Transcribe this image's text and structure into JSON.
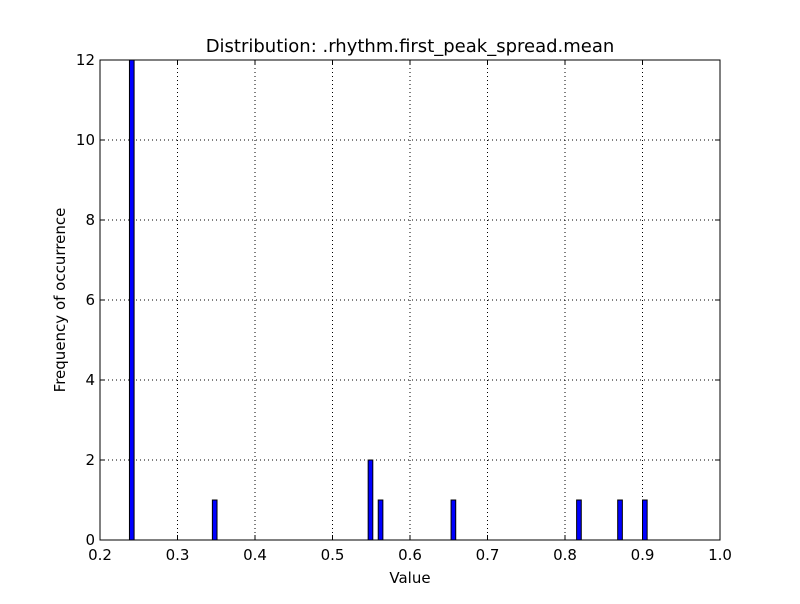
{
  "chart_data": {
    "type": "bar",
    "title": "Distribution: .rhythm.first_peak_spread.mean",
    "xlabel": "Value",
    "ylabel": "Frequency of occurrence",
    "xlim": [
      0.2,
      1.0
    ],
    "ylim": [
      0,
      12
    ],
    "xticks": [
      "0.2",
      "0.3",
      "0.4",
      "0.5",
      "0.6",
      "0.7",
      "0.8",
      "0.9",
      "1.0"
    ],
    "yticks": [
      "0",
      "2",
      "4",
      "6",
      "8",
      "10",
      "12"
    ],
    "grid": true,
    "bins": [
      {
        "start": 0.238,
        "end": 0.244,
        "count": 12
      },
      {
        "start": 0.345,
        "end": 0.351,
        "count": 1
      },
      {
        "start": 0.546,
        "end": 0.552,
        "count": 2
      },
      {
        "start": 0.559,
        "end": 0.565,
        "count": 1
      },
      {
        "start": 0.653,
        "end": 0.659,
        "count": 1
      },
      {
        "start": 0.815,
        "end": 0.821,
        "count": 1
      },
      {
        "start": 0.868,
        "end": 0.874,
        "count": 1
      },
      {
        "start": 0.9,
        "end": 0.906,
        "count": 1
      }
    ],
    "colors": {
      "bar_fill": "#0000ff",
      "bar_edge": "#000000",
      "grid": "#000000",
      "axes": "#000000"
    }
  }
}
